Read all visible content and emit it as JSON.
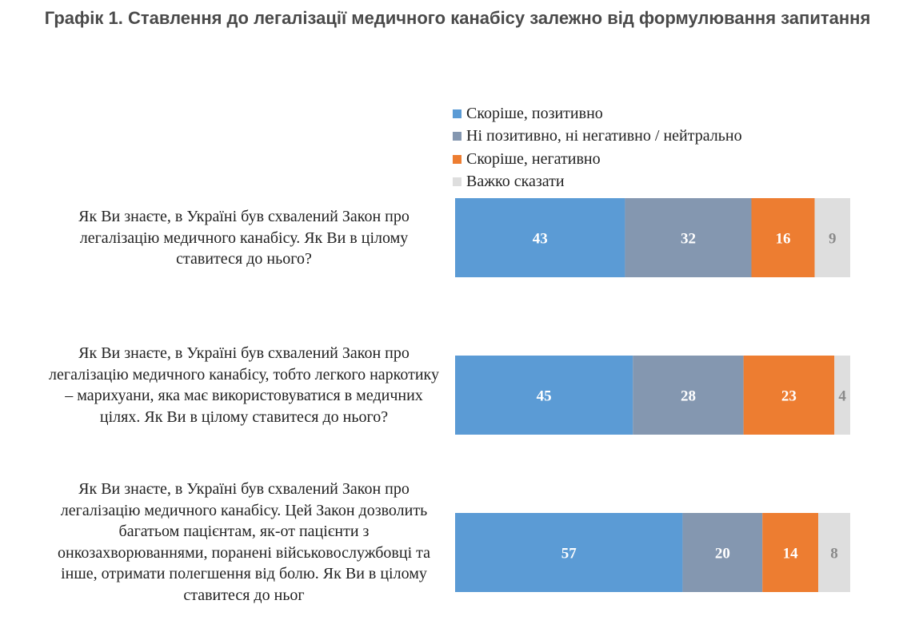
{
  "chart_data": {
    "type": "bar",
    "stacked": true,
    "orientation": "horizontal",
    "title": "Графік 1. Ставлення до легалізації медичного канабісу залежно від формулювання запитання",
    "categories": [
      "Як Ви знаєте, в Україні був схвалений Закон про легалізацію медичного канабісу. Як Ви в цілому ставитеся до нього?",
      "Як Ви знаєте, в Україні був схвалений Закон про легалізацію медичного канабісу, тобто легкого наркотику – марихуани, яка має використовуватися в медичних цілях. Як Ви в цілому ставитеся до нього?",
      "Як Ви знаєте, в Україні був схвалений Закон про легалізацію медичного канабісу. Цей Закон дозволить багатьом пацієнтам, як-от пацієнти з онкозахворюваннями, поранені військовослужбовці та інше, отримати полегшення від болю. Як Ви в цілому ставитеся до ньог"
    ],
    "series": [
      {
        "name": "Скоріше, позитивно",
        "color": "#5b9bd5",
        "label_color": "#ffffff",
        "values": [
          43,
          45,
          57
        ]
      },
      {
        "name": "Ні позитивно, ні негативно / нейтрально",
        "color": "#8497b0",
        "label_color": "#ffffff",
        "values": [
          32,
          28,
          20
        ]
      },
      {
        "name": "Скоріше, негативно",
        "color": "#ed7d31",
        "label_color": "#ffffff",
        "values": [
          16,
          23,
          14
        ]
      },
      {
        "name": "Важко сказати",
        "color": "#dedede",
        "label_color": "#8a8a8a",
        "values": [
          9,
          4,
          8
        ]
      }
    ],
    "legend_position": "top",
    "grid": false
  }
}
